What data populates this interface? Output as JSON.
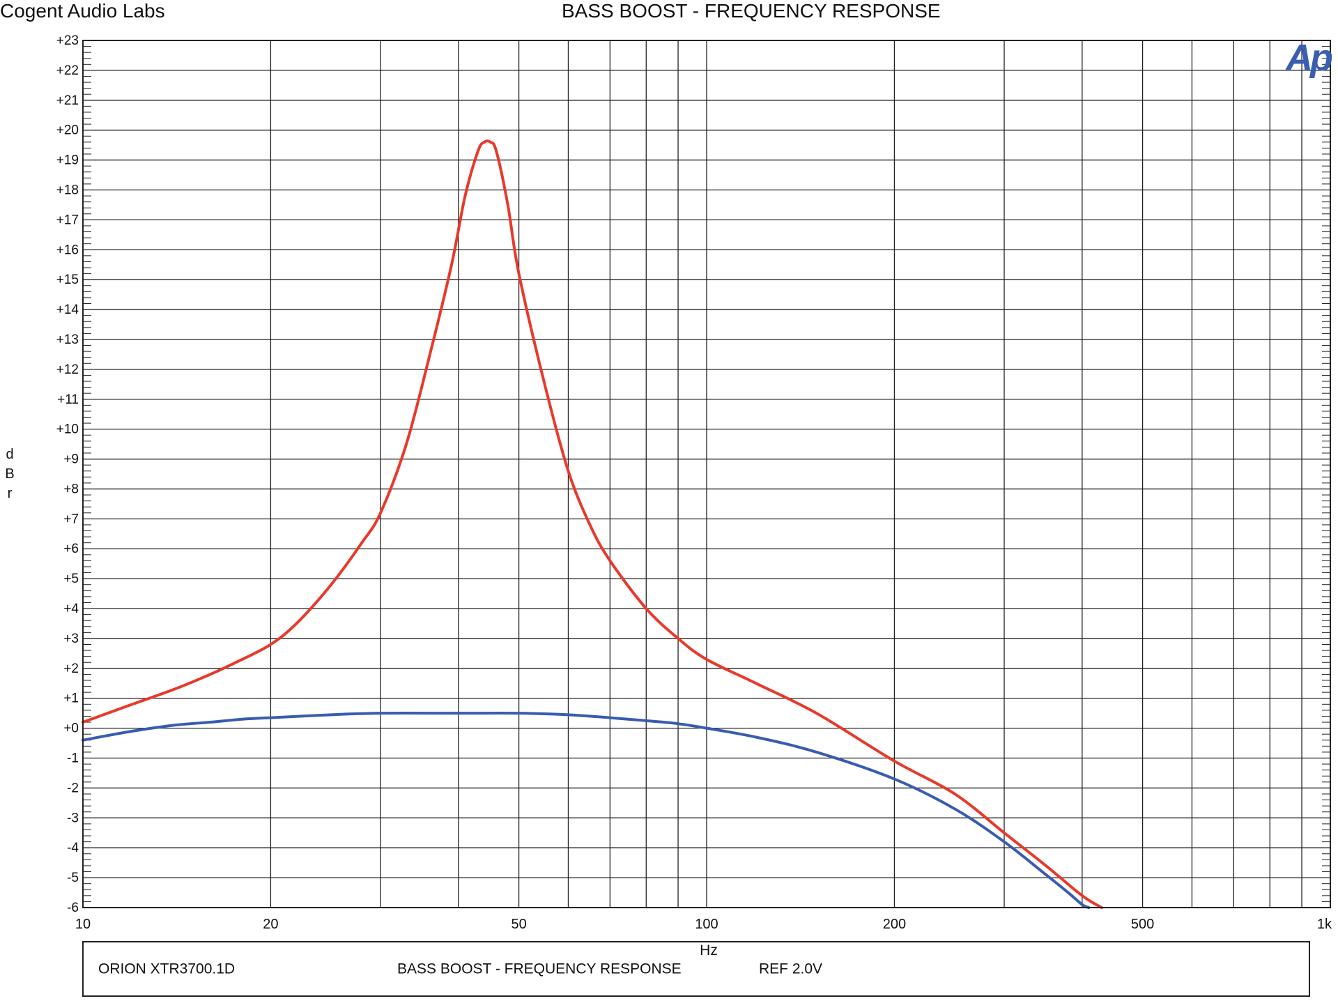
{
  "header": {
    "company": "Cogent Audio Labs",
    "title": "BASS BOOST  -  FREQUENCY RESPONSE"
  },
  "footer": {
    "model": "ORION  XTR3700.1D",
    "title": "BASS BOOST  -  FREQUENCY RESPONSE",
    "ref": "REF 2.0V"
  },
  "logo": {
    "text": "Ap",
    "color": "#3a5fb0"
  },
  "chart_data": {
    "type": "line",
    "title": "BASS BOOST  -  FREQUENCY RESPONSE",
    "xlabel": "Hz",
    "ylabel": [
      "d",
      "B",
      "r"
    ],
    "xscale": "log",
    "xlim": [
      10,
      1000
    ],
    "ylim": [
      -6,
      23
    ],
    "grid": true,
    "x_tick_labels": [
      {
        "value": 10,
        "label": "10"
      },
      {
        "value": 20,
        "label": "20"
      },
      {
        "value": 50,
        "label": "50"
      },
      {
        "value": 100,
        "label": "100"
      },
      {
        "value": 200,
        "label": "200"
      },
      {
        "value": 500,
        "label": "500"
      },
      {
        "value": 1000,
        "label": "1k"
      }
    ],
    "y_tick_labels": [
      "-6",
      "-5",
      "-4",
      "-3",
      "-2",
      "-1",
      "+0",
      "+1",
      "+2",
      "+3",
      "+4",
      "+5",
      "+6",
      "+7",
      "+8",
      "+9",
      "+10",
      "+11",
      "+12",
      "+13",
      "+14",
      "+15",
      "+16",
      "+17",
      "+18",
      "+19",
      "+20",
      "+21",
      "+22",
      "+23"
    ],
    "series": [
      {
        "color": "#e8392b",
        "x": [
          10,
          12,
          14,
          16,
          18,
          20,
          22,
          25,
          28,
          30,
          33,
          36,
          39,
          41,
          43,
          44,
          45,
          46,
          48,
          50,
          55,
          60,
          65,
          70,
          80,
          90,
          100,
          120,
          150,
          200,
          250,
          300,
          350,
          400,
          430
        ],
        "y": [
          0.2,
          0.8,
          1.3,
          1.8,
          2.3,
          2.8,
          3.5,
          4.8,
          6.2,
          7.2,
          9.5,
          12.5,
          15.5,
          17.8,
          19.3,
          19.6,
          19.6,
          19.3,
          17.5,
          15.2,
          11.5,
          8.6,
          6.8,
          5.6,
          4.0,
          3.0,
          2.3,
          1.5,
          0.5,
          -1.1,
          -2.2,
          -3.5,
          -4.6,
          -5.6,
          -6.0
        ]
      },
      {
        "color": "#3a5cb0",
        "x": [
          10,
          12,
          14,
          16,
          18,
          20,
          25,
          30,
          40,
          50,
          60,
          70,
          80,
          90,
          100,
          120,
          150,
          200,
          250,
          300,
          350,
          380,
          400,
          410
        ],
        "y": [
          -0.4,
          -0.1,
          0.1,
          0.2,
          0.3,
          0.35,
          0.45,
          0.5,
          0.5,
          0.5,
          0.45,
          0.35,
          0.25,
          0.15,
          0.0,
          -0.3,
          -0.8,
          -1.7,
          -2.7,
          -3.8,
          -4.9,
          -5.5,
          -5.9,
          -6.0
        ]
      }
    ]
  }
}
